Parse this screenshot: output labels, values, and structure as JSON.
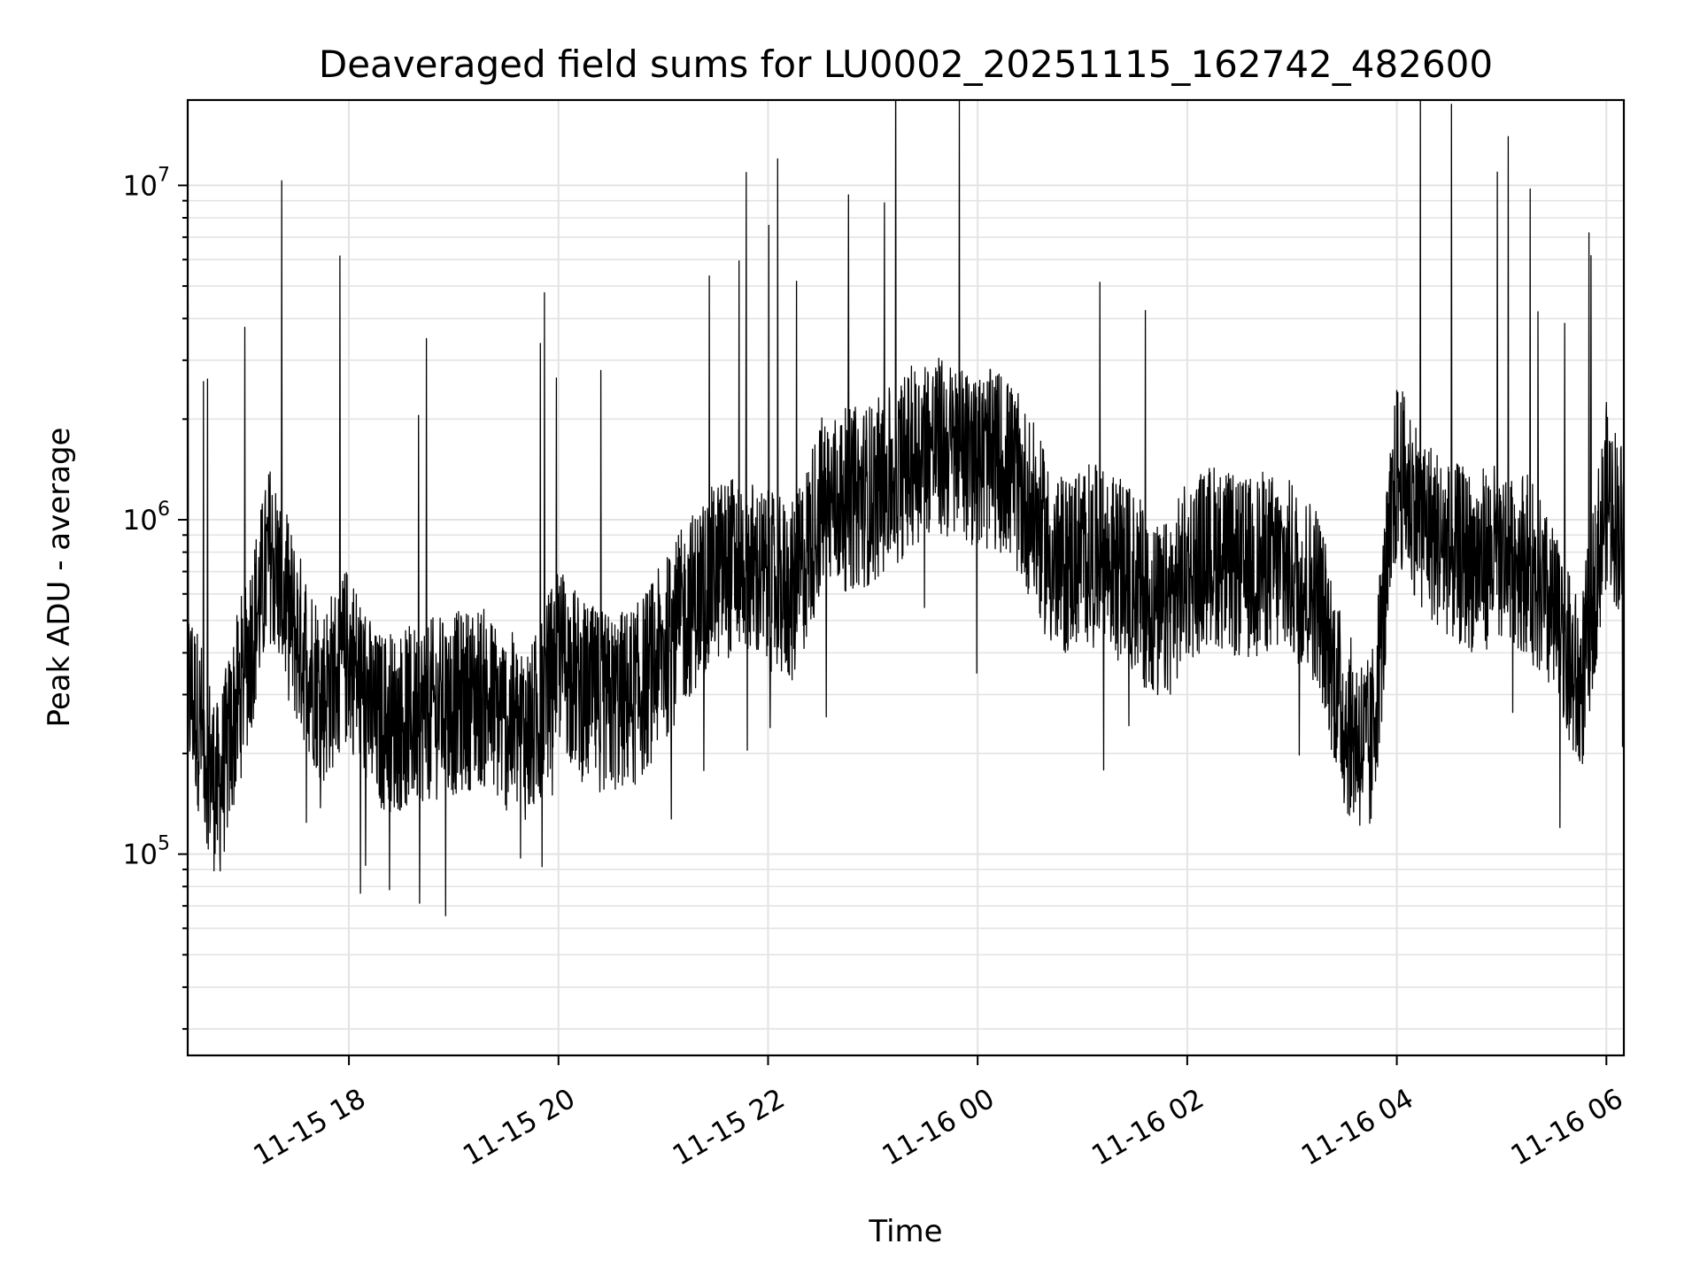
{
  "chart_data": {
    "type": "line",
    "title": "Deaveraged field sums for LU0002_20251115_162742_482600",
    "xlabel": "Time",
    "ylabel": "Peak ADU - average",
    "yscale": "log",
    "ylim": [
      25000,
      18000000
    ],
    "xlim": [
      "2025-11-15T16:27:42",
      "2025-11-16T06:10:00"
    ],
    "grid": true,
    "line_color": "#000000",
    "x_ticks": [
      {
        "label": "11-15 18",
        "time": "2025-11-15T18:00:00"
      },
      {
        "label": "11-15 20",
        "time": "2025-11-15T20:00:00"
      },
      {
        "label": "11-15 22",
        "time": "2025-11-15T22:00:00"
      },
      {
        "label": "11-16 00",
        "time": "2025-11-16T00:00:00"
      },
      {
        "label": "11-16 02",
        "time": "2025-11-16T02:00:00"
      },
      {
        "label": "11-16 04",
        "time": "2025-11-16T04:00:00"
      },
      {
        "label": "11-16 06",
        "time": "2025-11-16T06:00:00"
      }
    ],
    "y_ticks": [
      {
        "base": "10",
        "exp": "5",
        "value": 100000
      },
      {
        "base": "10",
        "exp": "6",
        "value": 1000000
      },
      {
        "base": "10",
        "exp": "7",
        "value": 10000000
      }
    ],
    "series": [
      {
        "x": [
          "2025-11-15T16:30",
          "2025-11-15T16:45",
          "2025-11-15T17:00",
          "2025-11-15T17:15",
          "2025-11-15T17:30",
          "2025-11-15T17:45",
          "2025-11-15T18:00",
          "2025-11-15T18:15",
          "2025-11-15T18:30",
          "2025-11-15T18:45",
          "2025-11-15T19:00",
          "2025-11-15T19:15",
          "2025-11-15T19:30",
          "2025-11-15T19:45",
          "2025-11-15T20:00",
          "2025-11-15T20:15",
          "2025-11-15T20:30",
          "2025-11-15T20:45",
          "2025-11-15T21:00",
          "2025-11-15T21:15",
          "2025-11-15T21:30",
          "2025-11-15T21:45",
          "2025-11-15T22:00",
          "2025-11-15T22:15",
          "2025-11-15T22:30",
          "2025-11-15T22:45",
          "2025-11-15T23:00",
          "2025-11-15T23:15",
          "2025-11-15T23:30",
          "2025-11-15T23:45",
          "2025-11-16T00:00",
          "2025-11-16T00:15",
          "2025-11-16T00:30",
          "2025-11-16T00:45",
          "2025-11-16T01:00",
          "2025-11-16T01:15",
          "2025-11-16T01:30",
          "2025-11-16T01:45",
          "2025-11-16T02:00",
          "2025-11-16T02:15",
          "2025-11-16T02:30",
          "2025-11-16T02:45",
          "2025-11-16T03:00",
          "2025-11-16T03:15",
          "2025-11-16T03:30",
          "2025-11-16T03:45",
          "2025-11-16T04:00",
          "2025-11-16T04:15",
          "2025-11-16T04:30",
          "2025-11-16T04:45",
          "2025-11-16T05:00",
          "2025-11-16T05:15",
          "2025-11-16T05:30",
          "2025-11-16T05:45",
          "2025-11-16T06:00",
          "2025-11-16T06:10"
        ],
        "y": [
          300000,
          150000,
          350000,
          800000,
          450000,
          300000,
          400000,
          250000,
          250000,
          270000,
          280000,
          300000,
          250000,
          230000,
          400000,
          300000,
          280000,
          300000,
          400000,
          550000,
          700000,
          750000,
          650000,
          600000,
          1100000,
          1150000,
          1200000,
          1400000,
          1700000,
          1600000,
          1500000,
          1500000,
          1100000,
          700000,
          800000,
          750000,
          650000,
          500000,
          700000,
          800000,
          700000,
          750000,
          700000,
          600000,
          250000,
          200000,
          1400000,
          1000000,
          800000,
          750000,
          800000,
          750000,
          500000,
          300000,
          1200000,
          900000
        ]
      }
    ]
  }
}
